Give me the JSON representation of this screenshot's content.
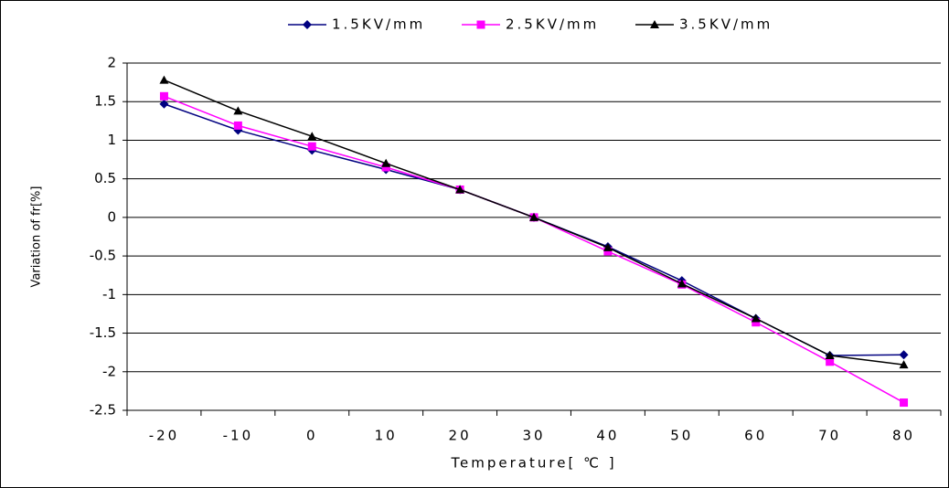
{
  "chart_data": {
    "type": "line",
    "x_label": "Temperature[ ℃ ]",
    "y_label": "Variation of fr[%]",
    "categories": [
      "-20",
      "-10",
      "0",
      "10",
      "20",
      "30",
      "40",
      "50",
      "60",
      "70",
      "80"
    ],
    "series": [
      {
        "name": "1.5KV/mm",
        "color": "#000080",
        "marker": "diamond",
        "values": [
          1.47,
          1.13,
          0.87,
          0.62,
          0.36,
          0,
          -0.38,
          -0.82,
          -1.31,
          -1.79,
          -1.78
        ]
      },
      {
        "name": "2.5KV/mm",
        "color": "#ff00ff",
        "marker": "square",
        "values": [
          1.57,
          1.19,
          0.92,
          0.65,
          0.36,
          0,
          -0.44,
          -0.87,
          -1.36,
          -1.87,
          -2.4
        ]
      },
      {
        "name": "3.5KV/mm",
        "color": "#000000",
        "marker": "triangle",
        "values": [
          1.78,
          1.38,
          1.05,
          0.7,
          0.36,
          0,
          -0.39,
          -0.86,
          -1.31,
          -1.79,
          -1.91
        ]
      }
    ],
    "ylim": [
      -2.5,
      2
    ],
    "yticks": [
      -2.5,
      -2,
      -1.5,
      -1,
      -0.5,
      0,
      0.5,
      1,
      1.5,
      2
    ],
    "grid": true,
    "legend": "top"
  }
}
